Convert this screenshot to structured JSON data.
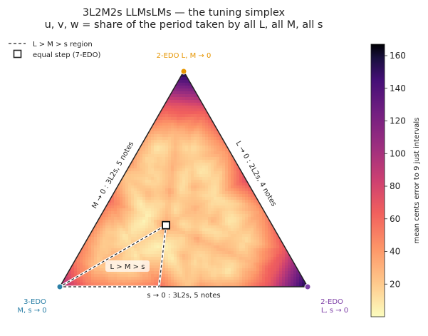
{
  "chart_data": {
    "type": "heatmap",
    "title": "3L2M2s   LLMsLMs   —   the tuning simplex",
    "subtitle": "u, v, w = share of the period taken by all L, all M, all s",
    "legend": {
      "placement": "top-left",
      "entries": [
        {
          "label": "L > M > s region",
          "style": "dashed-line"
        },
        {
          "label": "equal step (7-EDO)",
          "style": "square-marker"
        }
      ]
    },
    "vertices": [
      {
        "name": "top",
        "label": "2-EDO   L, M → 0",
        "color": "#e69500"
      },
      {
        "name": "left",
        "label_lines": [
          "3-EDO",
          "M, s → 0"
        ],
        "color": "#2a7fa6"
      },
      {
        "name": "right",
        "label_lines": [
          "2-EDO",
          "L, s → 0"
        ],
        "color": "#7d3fa6"
      }
    ],
    "edges": [
      {
        "side": "left",
        "label": "M → 0 :  3L2s,  5 notes"
      },
      {
        "side": "right",
        "label": "L → 0 :  2L2s,  4 notes"
      },
      {
        "side": "bottom",
        "label": "s → 0 :  3L2s,  5 notes"
      }
    ],
    "region_label": "L > M > s",
    "region": {
      "description": "dashed triangle of tunings with L > M > s",
      "corners_uvw": [
        [
          0.4286,
          0.2857,
          0.2857
        ],
        [
          0.6,
          0.4,
          0.0
        ],
        [
          1.0,
          0.0,
          0.0
        ]
      ]
    },
    "equal_step_point_uvw": [
      0.4286,
      0.2857,
      0.2857
    ],
    "colorbar": {
      "label": "mean cents error to 9 just intervals",
      "ticks": [
        20,
        40,
        60,
        80,
        100,
        120,
        140,
        160
      ],
      "range": [
        0,
        167
      ],
      "colormap": "magma_r"
    }
  }
}
